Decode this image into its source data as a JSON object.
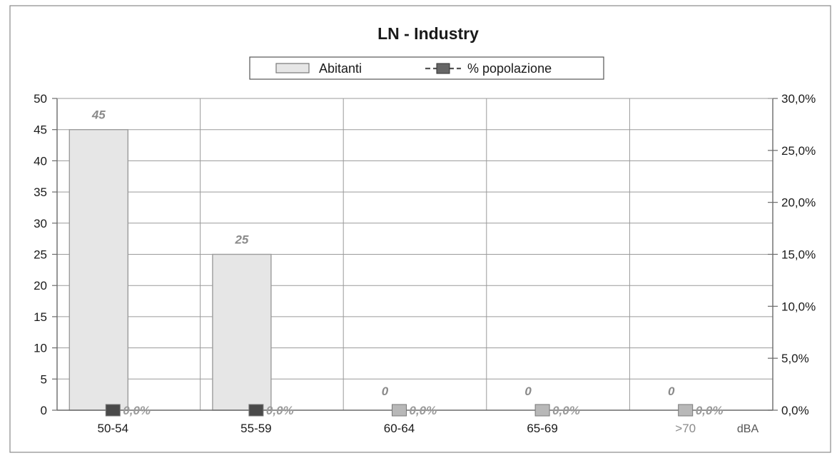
{
  "chart_data": {
    "type": "bar",
    "title": "LN - Industry",
    "categories": [
      "50-54",
      "55-59",
      "60-64",
      "65-69",
      ">70"
    ],
    "xlabel": "dBA",
    "ylabel": "",
    "ylim": [
      0,
      50
    ],
    "y_ticks": [
      "0",
      "5",
      "10",
      "15",
      "20",
      "25",
      "30",
      "35",
      "40",
      "45",
      "50"
    ],
    "y2lim": [
      0,
      30
    ],
    "y2_ticks": [
      "0,0%",
      "5,0%",
      "10,0%",
      "15,0%",
      "20,0%",
      "25,0%",
      "30,0%"
    ],
    "grid": true,
    "legend_position": "top-center",
    "series": [
      {
        "name": "Abitanti",
        "kind": "bar",
        "axis": "left",
        "values": [
          45,
          25,
          0,
          0,
          0
        ],
        "value_labels": [
          "45",
          "25",
          "0",
          "0",
          "0"
        ],
        "color": "#e6e6e6"
      },
      {
        "name": "% popolazione",
        "kind": "line",
        "axis": "right",
        "values": [
          0,
          0,
          0,
          0,
          0
        ],
        "value_labels": [
          "0,0%",
          "0,0%",
          "0,0%",
          "0,0%",
          "0,0%"
        ],
        "color": "#555555"
      }
    ]
  }
}
